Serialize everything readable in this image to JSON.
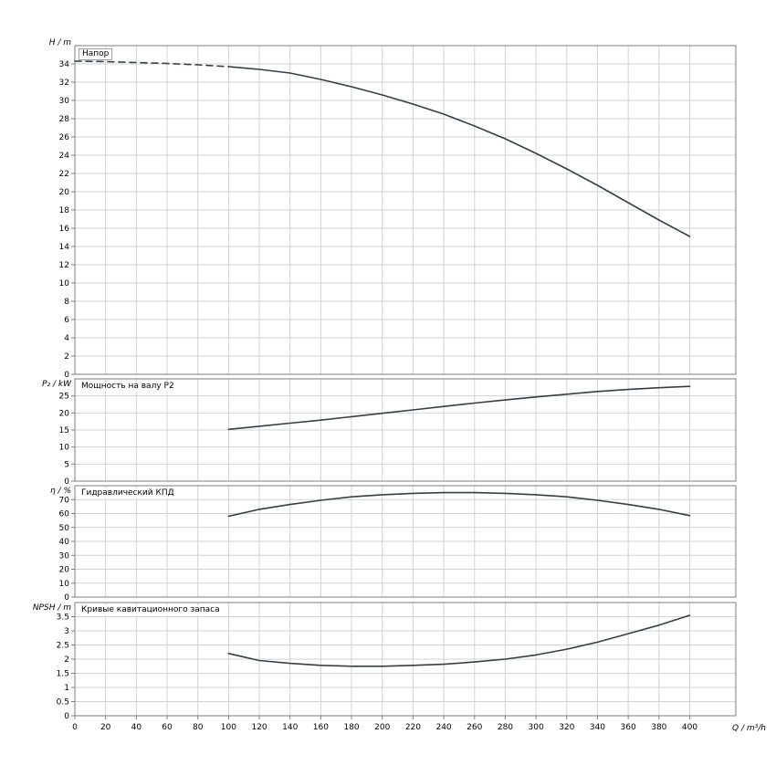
{
  "page": {
    "background": "#ffffff"
  },
  "colors": {
    "curve": "#333f48",
    "grid": "#d2d2d2",
    "frame": "#7d7d7d",
    "text": "#000000"
  },
  "axis": {
    "x_label": "Q / m³/h",
    "x_ticks": [
      0,
      20,
      40,
      60,
      80,
      100,
      120,
      140,
      160,
      180,
      200,
      220,
      240,
      260,
      280,
      300,
      320,
      340,
      360,
      380,
      400
    ],
    "x_max": 430
  },
  "chart_data": [
    {
      "type": "line",
      "title": "Напор",
      "ylabel": "H / m",
      "ylim": [
        0,
        36
      ],
      "ytick": 2,
      "grid": true,
      "series": [
        {
          "name": "head-dashed",
          "dash": "7,5",
          "points": [
            [
              0,
              34.3
            ],
            [
              20,
              34.25
            ],
            [
              40,
              34.15
            ],
            [
              60,
              34.05
            ],
            [
              80,
              33.9
            ],
            [
              100,
              33.7
            ]
          ]
        },
        {
          "name": "head",
          "dash": "",
          "points": [
            [
              100,
              33.7
            ],
            [
              120,
              33.4
            ],
            [
              140,
              33.0
            ],
            [
              160,
              32.3
            ],
            [
              180,
              31.5
            ],
            [
              200,
              30.6
            ],
            [
              220,
              29.6
            ],
            [
              240,
              28.5
            ],
            [
              260,
              27.2
            ],
            [
              280,
              25.8
            ],
            [
              300,
              24.2
            ],
            [
              320,
              22.5
            ],
            [
              340,
              20.7
            ],
            [
              360,
              18.8
            ],
            [
              380,
              16.9
            ],
            [
              400,
              15.1
            ]
          ]
        }
      ]
    },
    {
      "type": "line",
      "title": "Мощность на валу P2",
      "ylabel": "P₂ / kW",
      "ylim": [
        0,
        30
      ],
      "ytick": 5,
      "grid": true,
      "series": [
        {
          "name": "power-p2",
          "dash": "",
          "points": [
            [
              100,
              15.2
            ],
            [
              120,
              16.1
            ],
            [
              140,
              17.0
            ],
            [
              160,
              17.9
            ],
            [
              180,
              18.9
            ],
            [
              200,
              19.9
            ],
            [
              220,
              20.9
            ],
            [
              240,
              21.9
            ],
            [
              260,
              22.9
            ],
            [
              280,
              23.8
            ],
            [
              300,
              24.7
            ],
            [
              320,
              25.5
            ],
            [
              340,
              26.3
            ],
            [
              360,
              26.9
            ],
            [
              380,
              27.4
            ],
            [
              400,
              27.8
            ]
          ]
        }
      ]
    },
    {
      "type": "line",
      "title": "Гидравлический КПД",
      "ylabel": "η / %",
      "ylim": [
        0,
        80
      ],
      "ytick": 10,
      "grid": true,
      "series": [
        {
          "name": "efficiency",
          "dash": "",
          "points": [
            [
              100,
              58
            ],
            [
              120,
              63
            ],
            [
              140,
              66.5
            ],
            [
              160,
              69.5
            ],
            [
              180,
              72
            ],
            [
              200,
              73.5
            ],
            [
              220,
              74.5
            ],
            [
              240,
              75
            ],
            [
              260,
              75
            ],
            [
              280,
              74.5
            ],
            [
              300,
              73.5
            ],
            [
              320,
              72
            ],
            [
              340,
              69.5
            ],
            [
              360,
              66.5
            ],
            [
              380,
              63
            ],
            [
              400,
              58.5
            ]
          ]
        }
      ]
    },
    {
      "type": "line",
      "title": "Кривые кавитационного запаса",
      "ylabel": "NPSH / m",
      "ylim": [
        0,
        4
      ],
      "ytick": 0.5,
      "grid": true,
      "series": [
        {
          "name": "npsh",
          "dash": "",
          "points": [
            [
              100,
              2.2
            ],
            [
              120,
              1.95
            ],
            [
              140,
              1.85
            ],
            [
              160,
              1.78
            ],
            [
              180,
              1.75
            ],
            [
              200,
              1.75
            ],
            [
              220,
              1.78
            ],
            [
              240,
              1.82
            ],
            [
              260,
              1.9
            ],
            [
              280,
              2.0
            ],
            [
              300,
              2.15
            ],
            [
              320,
              2.35
            ],
            [
              340,
              2.6
            ],
            [
              360,
              2.9
            ],
            [
              380,
              3.2
            ],
            [
              400,
              3.55
            ]
          ]
        }
      ]
    }
  ]
}
